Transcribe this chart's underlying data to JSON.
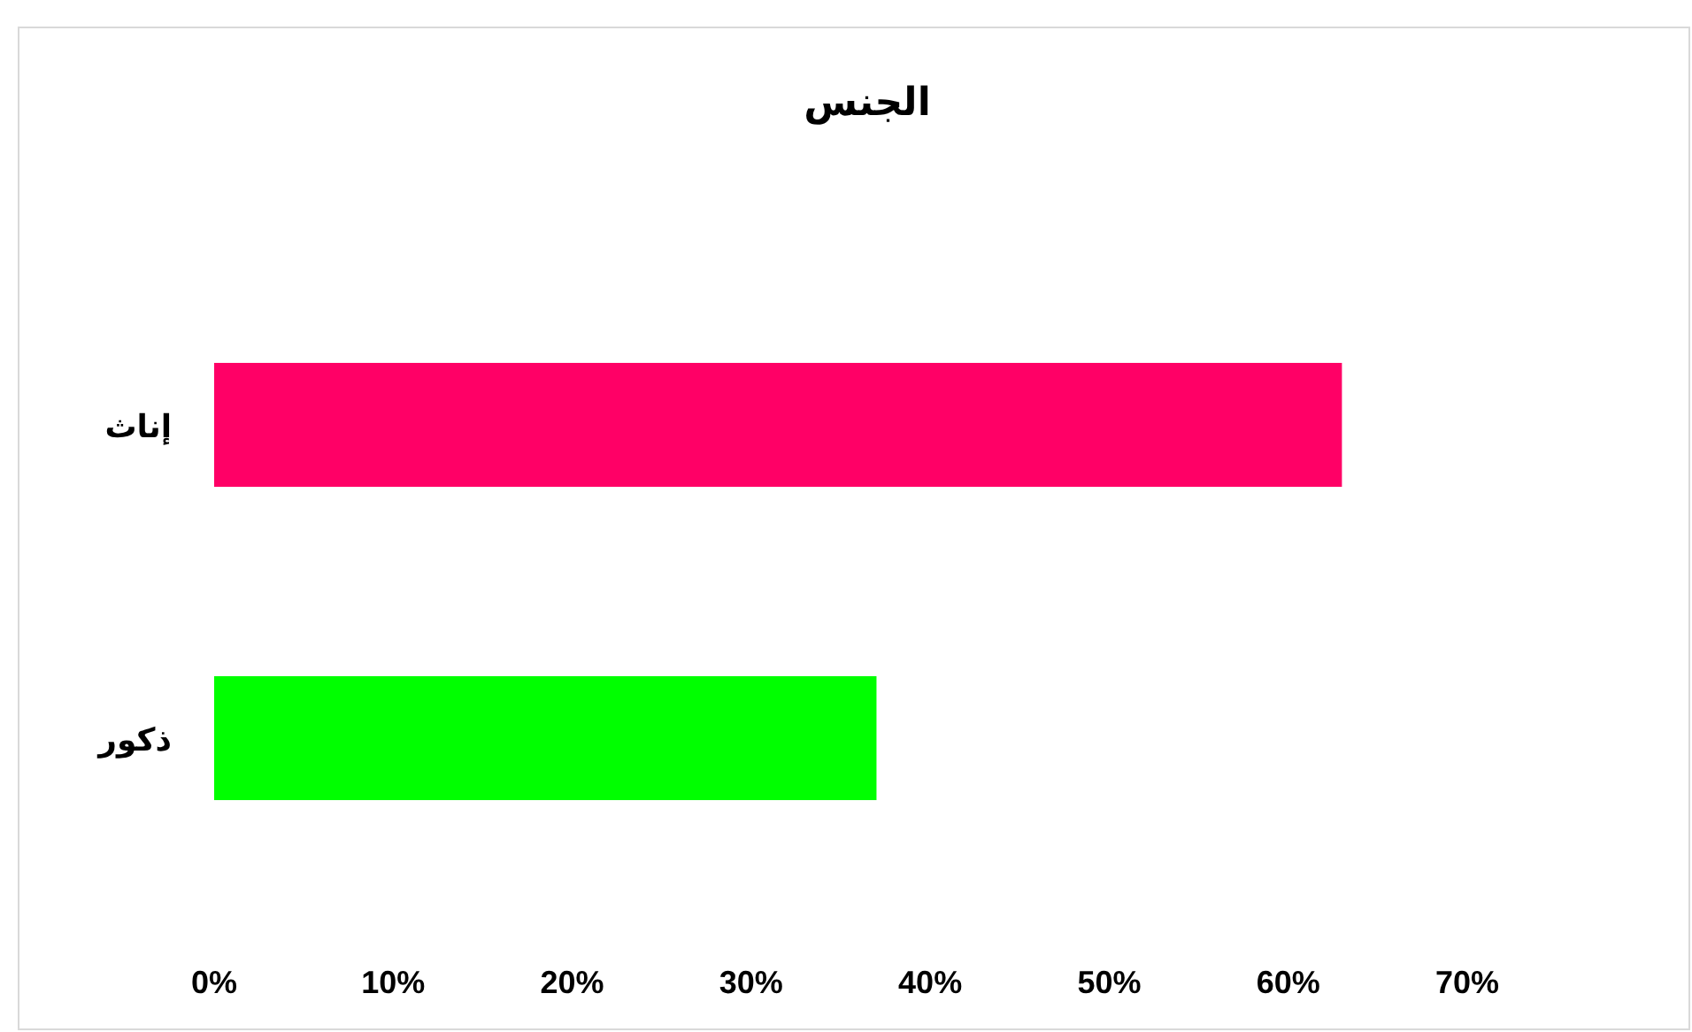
{
  "chart_data": {
    "type": "bar",
    "orientation": "horizontal",
    "title": "الجنس",
    "categories": [
      "إناث",
      "ذكور"
    ],
    "values": [
      63,
      37
    ],
    "colors": [
      "#ff0066",
      "#00ff00"
    ],
    "xlim": [
      0,
      70
    ],
    "xticks": [
      {
        "value": 0,
        "label": "0%"
      },
      {
        "value": 10,
        "label": "10%"
      },
      {
        "value": 20,
        "label": "20%"
      },
      {
        "value": 30,
        "label": "30%"
      },
      {
        "value": 40,
        "label": "40%"
      },
      {
        "value": 50,
        "label": "50%"
      },
      {
        "value": 60,
        "label": "60%"
      },
      {
        "value": 70,
        "label": "70%"
      }
    ]
  }
}
